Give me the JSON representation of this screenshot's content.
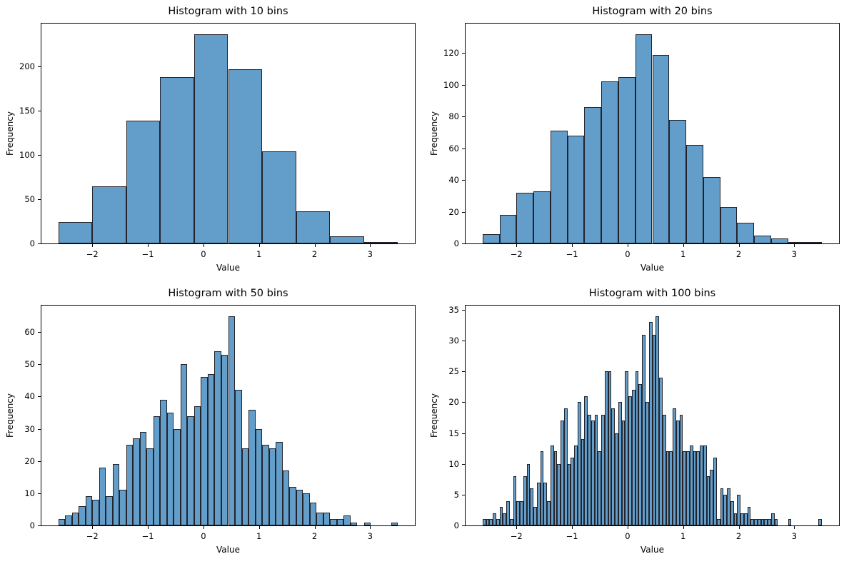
{
  "figure": {
    "background": "#ffffff",
    "bar_fill": "#629EC9",
    "bar_edge": "#23232b",
    "text_color": "#000000"
  },
  "chart_data": [
    {
      "type": "bar",
      "subtype": "histogram",
      "title": "Histogram with 10 bins",
      "xlabel": "Value",
      "ylabel": "Frequency",
      "bins": 10,
      "x_min": -2.61,
      "x_max": 3.5,
      "frequencies": [
        24,
        65,
        139,
        188,
        237,
        197,
        104,
        36,
        8,
        2
      ],
      "x_ticks": [
        -2,
        -1,
        0,
        1,
        2,
        3
      ],
      "y_ticks": [
        0,
        50,
        100,
        150,
        200
      ],
      "ylim": [
        0,
        248.85
      ],
      "grid": false,
      "legend": "none"
    },
    {
      "type": "bar",
      "subtype": "histogram",
      "title": "Histogram with 20 bins",
      "xlabel": "Value",
      "ylabel": "Frequency",
      "bins": 20,
      "x_min": -2.61,
      "x_max": 3.5,
      "frequencies": [
        6,
        18,
        32,
        33,
        71,
        68,
        86,
        102,
        105,
        132,
        119,
        78,
        62,
        42,
        23,
        13,
        5,
        3,
        1,
        1
      ],
      "x_ticks": [
        -2,
        -1,
        0,
        1,
        2,
        3
      ],
      "y_ticks": [
        0,
        20,
        40,
        60,
        80,
        100,
        120
      ],
      "ylim": [
        0,
        138.6
      ],
      "grid": false,
      "legend": "none"
    },
    {
      "type": "bar",
      "subtype": "histogram",
      "title": "Histogram with 50 bins",
      "xlabel": "Value",
      "ylabel": "Frequency",
      "bins": 50,
      "x_min": -2.61,
      "x_max": 3.5,
      "frequencies": [
        2,
        3,
        4,
        6,
        9,
        8,
        18,
        9,
        19,
        11,
        25,
        27,
        29,
        24,
        34,
        39,
        35,
        30,
        50,
        34,
        37,
        46,
        47,
        54,
        53,
        65,
        42,
        24,
        36,
        30,
        25,
        24,
        26,
        17,
        12,
        11,
        10,
        7,
        4,
        4,
        2,
        2,
        3,
        1,
        0,
        1,
        0,
        0,
        0,
        1
      ],
      "x_ticks": [
        -2,
        -1,
        0,
        1,
        2,
        3
      ],
      "y_ticks": [
        0,
        10,
        20,
        30,
        40,
        50,
        60
      ],
      "ylim": [
        0,
        68.25
      ],
      "grid": false,
      "legend": "none"
    },
    {
      "type": "bar",
      "subtype": "histogram",
      "title": "Histogram with 100 bins",
      "xlabel": "Value",
      "ylabel": "Frequency",
      "bins": 100,
      "x_min": -2.61,
      "x_max": 3.5,
      "frequencies": [
        1,
        1,
        1,
        2,
        1,
        3,
        2,
        4,
        1,
        8,
        4,
        4,
        8,
        10,
        6,
        3,
        7,
        12,
        7,
        4,
        13,
        12,
        10,
        17,
        19,
        10,
        11,
        13,
        20,
        14,
        21,
        18,
        17,
        18,
        12,
        18,
        25,
        25,
        19,
        15,
        20,
        17,
        25,
        21,
        22,
        25,
        23,
        31,
        20,
        33,
        31,
        34,
        24,
        18,
        12,
        12,
        19,
        17,
        18,
        12,
        12,
        13,
        12,
        12,
        13,
        13,
        8,
        9,
        11,
        1,
        6,
        5,
        6,
        4,
        2,
        5,
        2,
        2,
        3,
        1,
        1,
        1,
        1,
        1,
        1,
        2,
        1,
        0,
        0,
        0,
        1,
        0,
        0,
        0,
        0,
        0,
        0,
        0,
        0,
        1
      ],
      "x_ticks": [
        -2,
        -1,
        0,
        1,
        2,
        3
      ],
      "y_ticks": [
        0,
        5,
        10,
        15,
        20,
        25,
        30,
        35
      ],
      "ylim": [
        0,
        35.7
      ],
      "grid": false,
      "legend": "none"
    }
  ]
}
